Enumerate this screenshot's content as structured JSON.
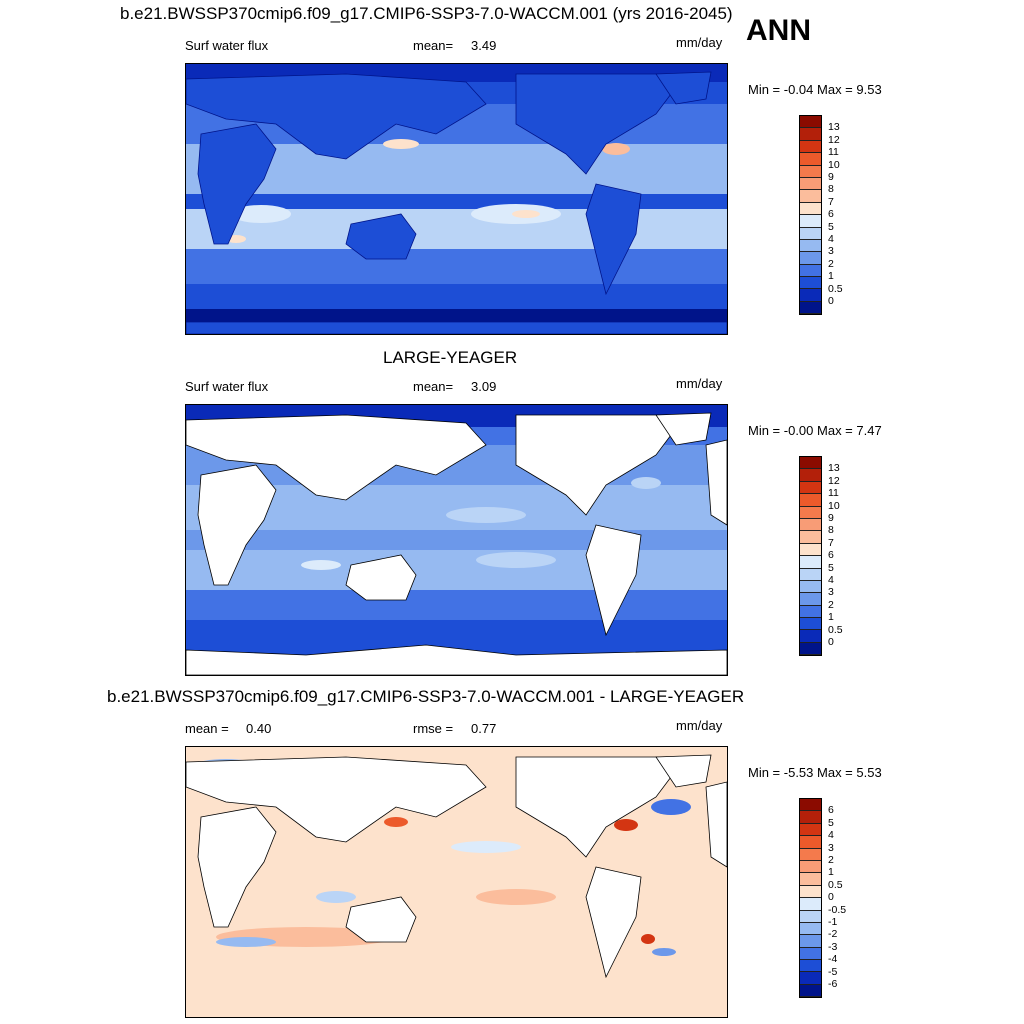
{
  "header": {
    "title": "b.e21.BWSSP370cmip6.f09_g17.CMIP6-SSP3-7.0-WACCM.001 (yrs 2016-2045)",
    "season": "ANN"
  },
  "panels": [
    {
      "title": "",
      "var_label": "Surf water flux",
      "stat1_label": "mean=",
      "stat1_value": "3.49",
      "stat2_label": "",
      "stat2_value": "",
      "units": "mm/day",
      "min_max": "Min =  -0.04 Max =   9.53",
      "land_masked": false,
      "colorbar": {
        "labels": [
          "13",
          "12",
          "11",
          "10",
          "9",
          "8",
          "7",
          "6",
          "5",
          "4",
          "3",
          "2",
          "1",
          "0.5",
          "0"
        ],
        "colors": [
          "#8b0b00",
          "#b3200a",
          "#d33512",
          "#ec5a2b",
          "#f47a4c",
          "#f89c76",
          "#fbbd9c",
          "#fde2cc",
          "#dcebfb",
          "#bad4f6",
          "#96baf1",
          "#6c98ea",
          "#4272e4",
          "#1d4ed6",
          "#0a2ab8",
          "#00148a"
        ]
      }
    },
    {
      "title": "LARGE-YEAGER",
      "var_label": "Surf water flux",
      "stat1_label": "mean=",
      "stat1_value": "3.09",
      "stat2_label": "",
      "stat2_value": "",
      "units": "mm/day",
      "min_max": "Min =  -0.00 Max =   7.47",
      "land_masked": true,
      "colorbar": {
        "labels": [
          "13",
          "12",
          "11",
          "10",
          "9",
          "8",
          "7",
          "6",
          "5",
          "4",
          "3",
          "2",
          "1",
          "0.5",
          "0"
        ],
        "colors": [
          "#8b0b00",
          "#b3200a",
          "#d33512",
          "#ec5a2b",
          "#f47a4c",
          "#f89c76",
          "#fbbd9c",
          "#fde2cc",
          "#dcebfb",
          "#bad4f6",
          "#96baf1",
          "#6c98ea",
          "#4272e4",
          "#1d4ed6",
          "#0a2ab8",
          "#00148a"
        ]
      }
    },
    {
      "title": "b.e21.BWSSP370cmip6.f09_g17.CMIP6-SSP3-7.0-WACCM.001 - LARGE-YEAGER",
      "var_label": "",
      "stat1_label": "mean =",
      "stat1_value": "0.40",
      "stat2_label": "rmse =",
      "stat2_value": "0.77",
      "units": "mm/day",
      "min_max": "Min =  -5.53 Max =   5.53",
      "land_masked": true,
      "colorbar": {
        "labels": [
          "6",
          "5",
          "4",
          "3",
          "2",
          "1",
          "0.5",
          "0",
          "-0.5",
          "-1",
          "-2",
          "-3",
          "-4",
          "-5",
          "-6"
        ],
        "colors": [
          "#8b0b00",
          "#b3200a",
          "#d33512",
          "#ec5a2b",
          "#f47a4c",
          "#f89c76",
          "#fbbd9c",
          "#fde2cc",
          "#dcebfb",
          "#bad4f6",
          "#96baf1",
          "#6c98ea",
          "#4272e4",
          "#1d4ed6",
          "#0a2ab8",
          "#00148a"
        ]
      }
    }
  ],
  "palette": {
    "ocean_deep": "#0a2ab8",
    "ocean_mid": "#4272e4",
    "ocean_light": "#96baf1",
    "ocean_pale": "#dcebfb",
    "diff_base": "#fde2cc",
    "diff_pos": "#f89c76",
    "diff_neg": "#bad4f6",
    "land_blue": "#1d4ed6"
  }
}
